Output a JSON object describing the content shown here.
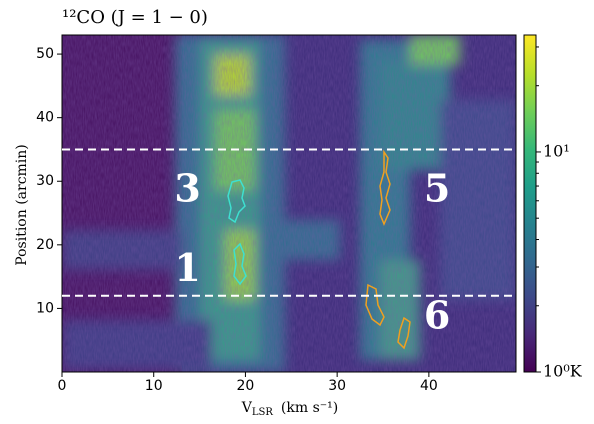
{
  "chart_data": {
    "type": "heatmap",
    "title": "¹²CO (J = 1 − 0)",
    "xlabel": "V",
    "xlabel_sub": "LSR",
    "xlabel_unit": "(km s⁻¹)",
    "ylabel": "Position (arcmin)",
    "xlim": [
      0,
      49.5
    ],
    "ylim": [
      0,
      53
    ],
    "xticks": [
      0,
      10,
      20,
      30,
      40
    ],
    "yticks": [
      10,
      20,
      30,
      40,
      50
    ],
    "colorbar": {
      "scale": "log",
      "clim": [
        1,
        34
      ],
      "ticks": [
        {
          "value": 1,
          "label": "10⁰K"
        },
        {
          "value": 10,
          "label": "10¹"
        }
      ],
      "minor_ticks": [
        2,
        3,
        4,
        5,
        6,
        7,
        8,
        9,
        20,
        30
      ]
    },
    "hlines": [
      35,
      12
    ],
    "hline_color": "#ffffff",
    "annotations": [
      {
        "text": "3",
        "x": 13.7,
        "y": 28.3
      },
      {
        "text": "1",
        "x": 13.7,
        "y": 15.8
      },
      {
        "text": "5",
        "x": 40.9,
        "y": 28.3
      },
      {
        "text": "6",
        "x": 40.9,
        "y": 8.3
      }
    ]
  }
}
